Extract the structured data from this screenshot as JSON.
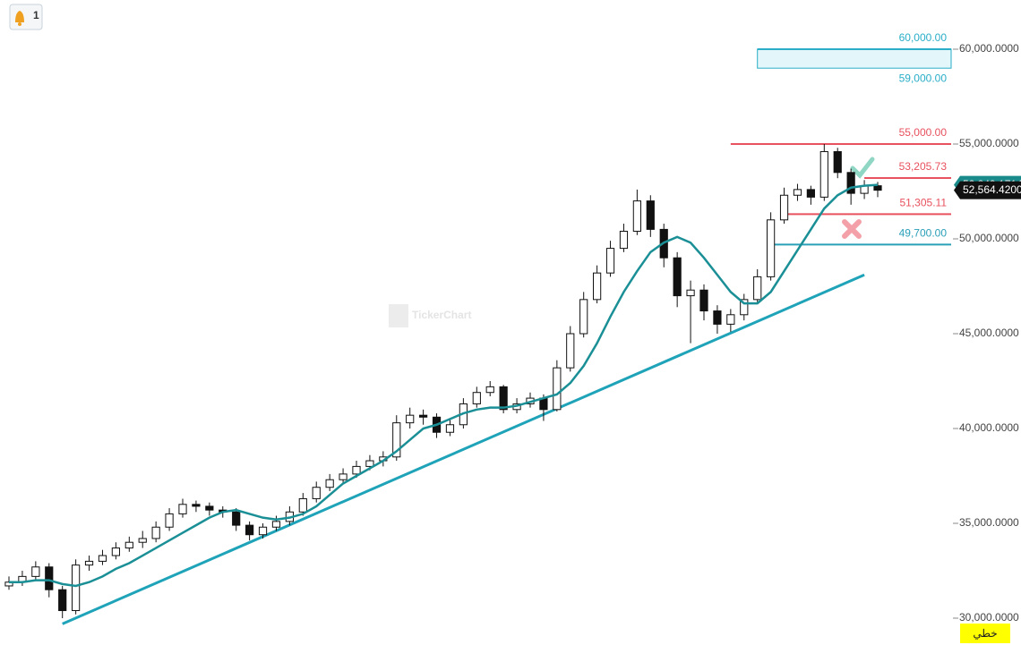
{
  "chart_data": {
    "type": "candlestick",
    "candles": [
      [
        31700,
        32200,
        31500,
        31900
      ],
      [
        31900,
        32500,
        31700,
        32200
      ],
      [
        32200,
        33000,
        32000,
        32700
      ],
      [
        32700,
        32900,
        31100,
        31500
      ],
      [
        31500,
        31700,
        30000,
        30400
      ],
      [
        30400,
        33100,
        30200,
        32800
      ],
      [
        32800,
        33300,
        32500,
        33000
      ],
      [
        33000,
        33600,
        32800,
        33300
      ],
      [
        33300,
        34000,
        33100,
        33700
      ],
      [
        33700,
        34300,
        33500,
        34000
      ],
      [
        34000,
        34600,
        33700,
        34200
      ],
      [
        34200,
        35100,
        34000,
        34800
      ],
      [
        34800,
        35800,
        34600,
        35500
      ],
      [
        35500,
        36300,
        35300,
        36000
      ],
      [
        36000,
        36200,
        35600,
        35900
      ],
      [
        35900,
        36100,
        35400,
        35700
      ],
      [
        35700,
        35900,
        35300,
        35600
      ],
      [
        35600,
        35800,
        34600,
        34900
      ],
      [
        34900,
        35100,
        34100,
        34400
      ],
      [
        34400,
        35000,
        34200,
        34800
      ],
      [
        34800,
        35400,
        34600,
        35100
      ],
      [
        35100,
        35900,
        34900,
        35600
      ],
      [
        35600,
        36600,
        35400,
        36300
      ],
      [
        36300,
        37200,
        36100,
        36900
      ],
      [
        36900,
        37600,
        36700,
        37300
      ],
      [
        37300,
        37900,
        37100,
        37600
      ],
      [
        37600,
        38300,
        37400,
        38000
      ],
      [
        38000,
        38600,
        37800,
        38300
      ],
      [
        38300,
        38800,
        38000,
        38500
      ],
      [
        38500,
        40700,
        38300,
        40300
      ],
      [
        40300,
        41100,
        40000,
        40700
      ],
      [
        40700,
        41000,
        40200,
        40600
      ],
      [
        40600,
        40800,
        39500,
        39800
      ],
      [
        39800,
        40500,
        39600,
        40200
      ],
      [
        40200,
        41600,
        40000,
        41300
      ],
      [
        41300,
        42200,
        41100,
        41900
      ],
      [
        41900,
        42500,
        41700,
        42200
      ],
      [
        42200,
        42300,
        40800,
        41000
      ],
      [
        41000,
        41600,
        40800,
        41300
      ],
      [
        41300,
        41900,
        41100,
        41600
      ],
      [
        41600,
        41800,
        40400,
        41000
      ],
      [
        41000,
        43600,
        40900,
        43200
      ],
      [
        43200,
        45400,
        43000,
        45000
      ],
      [
        45000,
        47200,
        44800,
        46800
      ],
      [
        46800,
        48600,
        46600,
        48200
      ],
      [
        48200,
        49900,
        48000,
        49500
      ],
      [
        49500,
        50800,
        49300,
        50400
      ],
      [
        50400,
        52600,
        50200,
        52000
      ],
      [
        52000,
        52300,
        50100,
        50500
      ],
      [
        50500,
        50800,
        48500,
        49000
      ],
      [
        49000,
        49300,
        46400,
        47000
      ],
      [
        47000,
        47800,
        44500,
        47300
      ],
      [
        47300,
        47600,
        45700,
        46200
      ],
      [
        46200,
        46500,
        45000,
        45500
      ],
      [
        45500,
        46300,
        45100,
        46000
      ],
      [
        46000,
        47100,
        45700,
        46800
      ],
      [
        46800,
        48400,
        46600,
        48000
      ],
      [
        48000,
        51400,
        47800,
        51000
      ],
      [
        51000,
        52700,
        50800,
        52300
      ],
      [
        52300,
        52900,
        52000,
        52600
      ],
      [
        52600,
        52800,
        51800,
        52200
      ],
      [
        52200,
        55000,
        52000,
        54600
      ],
      [
        54600,
        54800,
        53200,
        53500
      ],
      [
        53500,
        53700,
        51800,
        52400
      ],
      [
        52400,
        53100,
        52100,
        52800
      ],
      [
        52800,
        53000,
        52200,
        52564.42
      ]
    ],
    "moving_average": {
      "color": "#1a8f96",
      "values": [
        31900,
        31900,
        32000,
        32000,
        31800,
        31700,
        31900,
        32200,
        32600,
        32900,
        33300,
        33700,
        34100,
        34500,
        34900,
        35300,
        35600,
        35700,
        35500,
        35300,
        35200,
        35300,
        35500,
        35900,
        36500,
        37100,
        37500,
        37900,
        38300,
        38800,
        39400,
        40000,
        40200,
        40500,
        40800,
        41000,
        41100,
        41100,
        41200,
        41400,
        41600,
        41800,
        42400,
        43300,
        44500,
        45900,
        47200,
        48300,
        49300,
        49800,
        50100,
        49800,
        49000,
        48100,
        47200,
        46600,
        46600,
        47200,
        48300,
        49400,
        50500,
        51600,
        52300,
        52700,
        52800,
        52849.1714
      ]
    },
    "trendline": {
      "color": "#1fa3b8",
      "start_index": 4,
      "start_value": 29700,
      "end_index": 64,
      "end_value": 48100
    },
    "zone": {
      "color": "#2aaec8",
      "from_index": 56,
      "top": {
        "value": 60000,
        "label": "60,000.00"
      },
      "bottom": {
        "value": 59000,
        "label": "59,000.00"
      }
    },
    "levels": [
      {
        "value": 55000,
        "label": "55,000.00",
        "color": "#e8515e",
        "from_index": 54
      },
      {
        "value": 53205.73,
        "label": "53,205.73",
        "color": "#e8515e",
        "from_index": 64
      },
      {
        "value": 51305.11,
        "label": "51,305.11",
        "color": "#e8515e",
        "from_index": 58
      },
      {
        "value": 49700,
        "label": "49,700.00",
        "color": "#2a9fb8",
        "from_index": 57
      }
    ],
    "price_tags": [
      {
        "value": 52849.1714,
        "label": "52,849.1714",
        "color": "#1a8a8a"
      },
      {
        "value": 52564.42,
        "label": "52,564.4200",
        "color": "#111111"
      }
    ],
    "ylim": [
      30000,
      60000
    ],
    "yticks": [
      {
        "value": 30000,
        "label": "30,000.0000"
      },
      {
        "value": 35000,
        "label": "35,000.0000"
      },
      {
        "value": 40000,
        "label": "40,000.0000"
      },
      {
        "value": 45000,
        "label": "45,000.0000"
      },
      {
        "value": 50000,
        "label": "50,000.0000"
      },
      {
        "value": 55000,
        "label": "55,000.0000"
      },
      {
        "value": 60000,
        "label": "60,000.0000"
      }
    ],
    "watermark": "TickerChart",
    "alert_count": "1",
    "scale_mode": "خطي"
  }
}
